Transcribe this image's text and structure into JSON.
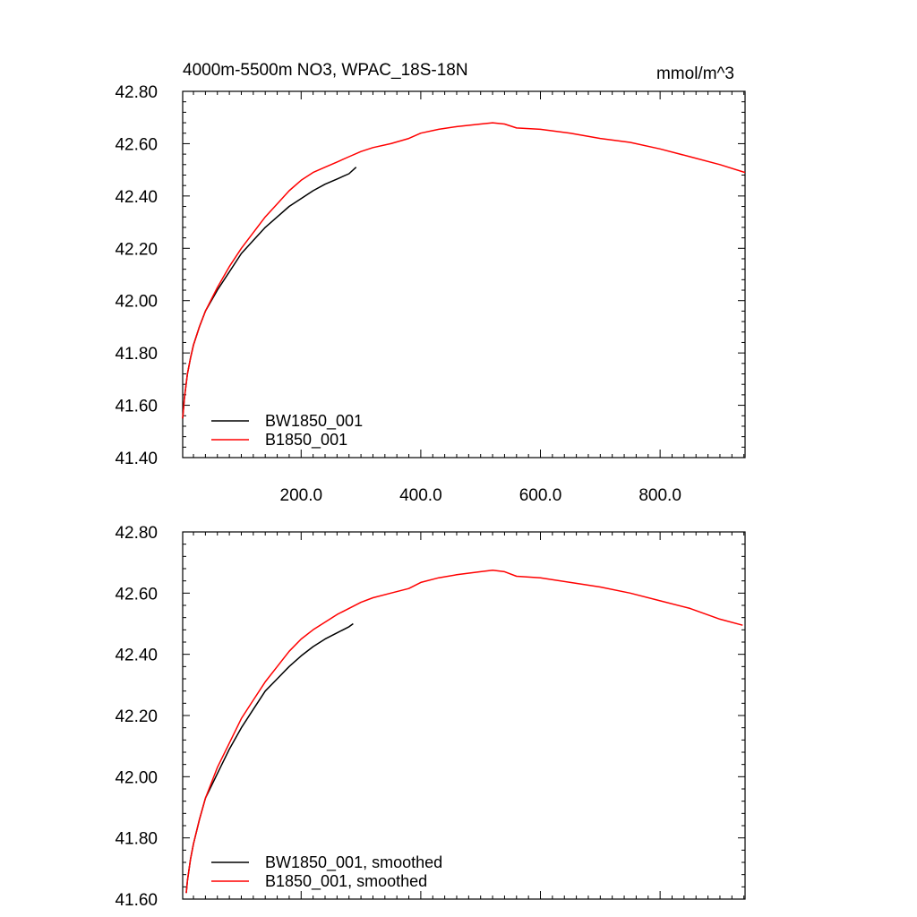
{
  "chart_data": [
    {
      "type": "line",
      "title": "4000m-5500m NO3, WPAC_18S-18N",
      "units": "mmol/m^3",
      "xlim": [
        2,
        942
      ],
      "ylim": [
        41.4,
        42.8
      ],
      "x_ticks": [
        200,
        400,
        600,
        800
      ],
      "x_tick_labels": [
        "200.0",
        "400.0",
        "600.0",
        "800.0"
      ],
      "y_ticks": [
        41.4,
        41.6,
        41.8,
        42.0,
        42.2,
        42.4,
        42.6,
        42.8
      ],
      "y_tick_labels": [
        "41.40",
        "41.60",
        "41.80",
        "42.00",
        "42.20",
        "42.40",
        "42.60",
        "42.80"
      ],
      "legend_placement": "bottom-left",
      "series": [
        {
          "name": "BW1850_001",
          "color": "#000000",
          "x": [
            2,
            5,
            10,
            15,
            20,
            30,
            40,
            60,
            80,
            100,
            120,
            140,
            160,
            180,
            200,
            220,
            240,
            260,
            280,
            292
          ],
          "y": [
            41.55,
            41.63,
            41.72,
            41.78,
            41.83,
            41.9,
            41.96,
            42.04,
            42.11,
            42.18,
            42.23,
            42.28,
            42.32,
            42.36,
            42.39,
            42.42,
            42.445,
            42.465,
            42.485,
            42.51
          ]
        },
        {
          "name": "B1850_001",
          "color": "#ff0000",
          "x": [
            2,
            5,
            10,
            15,
            20,
            30,
            40,
            60,
            80,
            100,
            120,
            140,
            160,
            180,
            200,
            220,
            240,
            260,
            280,
            300,
            320,
            350,
            380,
            400,
            430,
            460,
            500,
            520,
            540,
            560,
            600,
            650,
            700,
            750,
            800,
            850,
            900,
            942
          ],
          "y": [
            41.55,
            41.63,
            41.72,
            41.78,
            41.83,
            41.9,
            41.96,
            42.05,
            42.13,
            42.2,
            42.26,
            42.32,
            42.37,
            42.42,
            42.46,
            42.49,
            42.51,
            42.53,
            42.55,
            42.57,
            42.585,
            42.6,
            42.62,
            42.64,
            42.655,
            42.665,
            42.675,
            42.68,
            42.675,
            42.66,
            42.655,
            42.64,
            42.62,
            42.605,
            42.58,
            42.55,
            42.52,
            42.49
          ]
        }
      ]
    },
    {
      "type": "line",
      "xlim": [
        2,
        942
      ],
      "ylim": [
        41.6,
        42.8
      ],
      "x_ticks": [
        200,
        400,
        600,
        800
      ],
      "y_ticks": [
        41.6,
        41.8,
        42.0,
        42.2,
        42.4,
        42.6,
        42.8
      ],
      "y_tick_labels": [
        "41.60",
        "41.80",
        "42.00",
        "42.20",
        "42.40",
        "42.60",
        "42.80"
      ],
      "legend_placement": "bottom-left",
      "series": [
        {
          "name": "BW1850_001, smoothed",
          "color": "#000000",
          "x": [
            8,
            10,
            15,
            20,
            30,
            40,
            60,
            80,
            100,
            120,
            140,
            160,
            180,
            200,
            220,
            240,
            260,
            280,
            287
          ],
          "y": [
            41.62,
            41.66,
            41.73,
            41.78,
            41.86,
            41.93,
            42.01,
            42.09,
            42.16,
            42.22,
            42.28,
            42.32,
            42.36,
            42.395,
            42.425,
            42.45,
            42.47,
            42.49,
            42.5
          ]
        },
        {
          "name": "B1850_001, smoothed",
          "color": "#ff0000",
          "x": [
            8,
            10,
            15,
            20,
            30,
            40,
            60,
            80,
            100,
            120,
            140,
            160,
            180,
            200,
            220,
            240,
            260,
            280,
            300,
            320,
            350,
            380,
            400,
            430,
            460,
            500,
            520,
            540,
            560,
            600,
            650,
            700,
            750,
            800,
            850,
            900,
            938
          ],
          "y": [
            41.62,
            41.66,
            41.73,
            41.78,
            41.86,
            41.93,
            42.03,
            42.11,
            42.19,
            42.25,
            42.31,
            42.36,
            42.41,
            42.45,
            42.48,
            42.505,
            42.53,
            42.55,
            42.57,
            42.585,
            42.6,
            42.615,
            42.635,
            42.65,
            42.66,
            42.67,
            42.675,
            42.67,
            42.655,
            42.65,
            42.635,
            42.62,
            42.6,
            42.575,
            42.55,
            42.515,
            42.495
          ]
        }
      ]
    }
  ]
}
